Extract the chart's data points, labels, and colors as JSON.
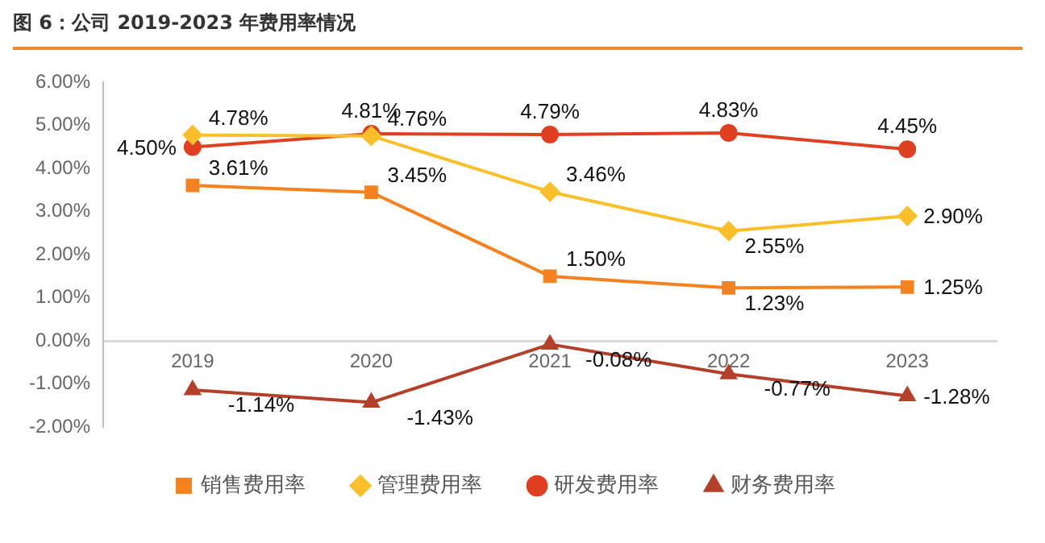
{
  "chart_data": {
    "type": "line",
    "title": "图 6：公司 2019-2023 年费用率情况",
    "categories": [
      "2019",
      "2020",
      "2021",
      "2022",
      "2023"
    ],
    "series": [
      {
        "name": "销售费用率",
        "color": "#f58220",
        "marker": "square",
        "values": [
          3.61,
          3.45,
          1.5,
          1.23,
          1.25
        ],
        "value_labels": [
          "3.61%",
          "3.45%",
          "1.50%",
          "1.23%",
          "1.25%"
        ]
      },
      {
        "name": "管理费用率",
        "color": "#fbbf2a",
        "marker": "diamond",
        "values": [
          4.78,
          4.76,
          3.46,
          2.55,
          2.9
        ],
        "value_labels": [
          "4.78%",
          "4.76%",
          "3.46%",
          "2.55%",
          "2.90%"
        ]
      },
      {
        "name": "研发费用率",
        "color": "#e04020",
        "marker": "circle",
        "values": [
          4.5,
          4.81,
          4.79,
          4.83,
          4.45
        ],
        "value_labels": [
          "4.50%",
          "4.81%",
          "4.79%",
          "4.83%",
          "4.45%"
        ]
      },
      {
        "name": "财务费用率",
        "color": "#b5402a",
        "marker": "triangle",
        "values": [
          -1.14,
          -1.43,
          -0.08,
          -0.77,
          -1.28
        ],
        "value_labels": [
          "-1.14%",
          "-1.43%",
          "-0.08%",
          "-0.77%",
          "-1.28%"
        ]
      }
    ],
    "ylim": [
      -2,
      6
    ],
    "yticks": [
      {
        "value": -2,
        "label": "-2.00%"
      },
      {
        "value": -1,
        "label": "-1.00%"
      },
      {
        "value": 0,
        "label": "0.00%"
      },
      {
        "value": 1,
        "label": "1.00%"
      },
      {
        "value": 2,
        "label": "2.00%"
      },
      {
        "value": 3,
        "label": "3.00%"
      },
      {
        "value": 4,
        "label": "4.00%"
      },
      {
        "value": 5,
        "label": "5.00%"
      },
      {
        "value": 6,
        "label": "6.00%"
      }
    ],
    "grid": false,
    "legend": "bottom"
  }
}
